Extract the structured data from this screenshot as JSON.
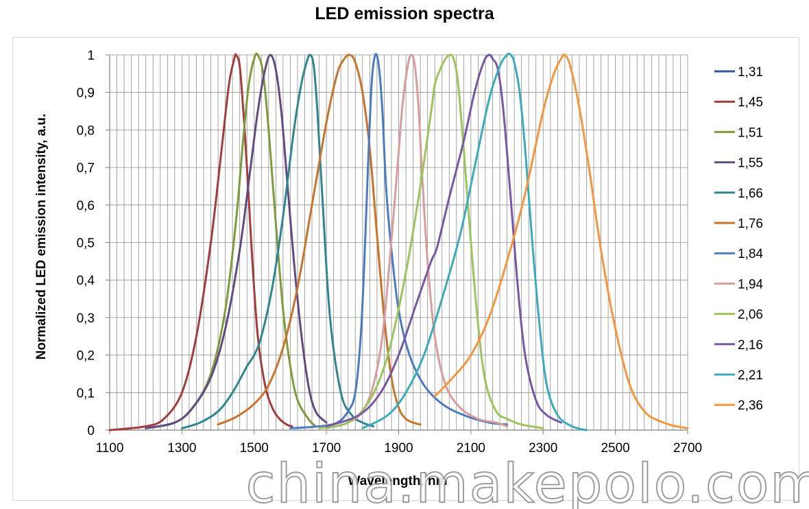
{
  "chart_data": {
    "type": "line",
    "title": "LED emission spectra",
    "xlabel": "Wavelength, nm",
    "ylabel": "Normalized LED emission intensity, a.u.",
    "xlim": [
      1100,
      2700
    ],
    "ylim": [
      0,
      1
    ],
    "x_ticks": [
      "1100",
      "1300",
      "1500",
      "1700",
      "1900",
      "2100",
      "2300",
      "2500",
      "2700"
    ],
    "y_ticks": [
      "0",
      "0,1",
      "0,2",
      "0,3",
      "0,4",
      "0,5",
      "0,6",
      "0,7",
      "0,8",
      "0,9",
      "1"
    ],
    "grid": "vertical and horizontal",
    "legend_position": "right",
    "series": [
      {
        "name": "1,31",
        "color": "#2f5597",
        "x": [],
        "y": []
      },
      {
        "name": "1,45",
        "color": "#a33b3b",
        "x": [
          1100,
          1200,
          1250,
          1300,
          1340,
          1380,
          1410,
          1430,
          1445,
          1450,
          1460,
          1470,
          1480,
          1495,
          1510,
          1530,
          1550,
          1570,
          1590,
          1605
        ],
        "y": [
          0,
          0.01,
          0.03,
          0.1,
          0.25,
          0.5,
          0.75,
          0.92,
          0.99,
          1.0,
          0.97,
          0.85,
          0.7,
          0.45,
          0.25,
          0.12,
          0.06,
          0.03,
          0.015,
          0.01
        ]
      },
      {
        "name": "1,51",
        "color": "#7f9a3a",
        "x": [
          1200,
          1280,
          1330,
          1380,
          1420,
          1450,
          1470,
          1485,
          1500,
          1510,
          1525,
          1540,
          1560,
          1580,
          1600,
          1620,
          1650,
          1670
        ],
        "y": [
          0.005,
          0.02,
          0.06,
          0.15,
          0.32,
          0.56,
          0.78,
          0.92,
          0.99,
          1.0,
          0.95,
          0.8,
          0.55,
          0.32,
          0.17,
          0.08,
          0.03,
          0.01
        ]
      },
      {
        "name": "1,55",
        "color": "#5f4a84",
        "x": [
          1200,
          1280,
          1330,
          1380,
          1420,
          1460,
          1490,
          1510,
          1530,
          1545,
          1560,
          1575,
          1590,
          1610,
          1630,
          1650,
          1670,
          1700
        ],
        "y": [
          0.005,
          0.02,
          0.06,
          0.14,
          0.27,
          0.48,
          0.7,
          0.85,
          0.96,
          1.0,
          0.96,
          0.85,
          0.68,
          0.45,
          0.26,
          0.12,
          0.05,
          0.02
        ]
      },
      {
        "name": "1,66",
        "color": "#2e8591",
        "x": [
          1300,
          1350,
          1400,
          1440,
          1480,
          1500,
          1520,
          1550,
          1580,
          1610,
          1630,
          1645,
          1655,
          1665,
          1675,
          1690,
          1710,
          1740,
          1770,
          1800,
          1830
        ],
        "y": [
          0.005,
          0.02,
          0.05,
          0.1,
          0.17,
          0.2,
          0.25,
          0.38,
          0.57,
          0.8,
          0.92,
          0.98,
          1.0,
          0.97,
          0.85,
          0.6,
          0.3,
          0.1,
          0.04,
          0.02,
          0.01
        ]
      },
      {
        "name": "1,76",
        "color": "#c8722c",
        "x": [
          1400,
          1450,
          1500,
          1540,
          1580,
          1620,
          1660,
          1700,
          1730,
          1750,
          1765,
          1780,
          1800,
          1820,
          1840,
          1860,
          1880,
          1900,
          1920,
          1940,
          1960
        ],
        "y": [
          0.015,
          0.035,
          0.07,
          0.12,
          0.22,
          0.38,
          0.6,
          0.82,
          0.95,
          0.99,
          1.0,
          0.98,
          0.9,
          0.75,
          0.52,
          0.3,
          0.14,
          0.06,
          0.03,
          0.02,
          0.015
        ]
      },
      {
        "name": "1,84",
        "color": "#4a7abf",
        "x": [
          1600,
          1680,
          1730,
          1760,
          1780,
          1795,
          1805,
          1815,
          1825,
          1835,
          1845,
          1855,
          1865,
          1880,
          1900,
          1930,
          1970,
          2020,
          2080,
          2150,
          2200
        ],
        "y": [
          0.005,
          0.01,
          0.02,
          0.05,
          0.1,
          0.25,
          0.45,
          0.7,
          0.92,
          1.0,
          0.97,
          0.85,
          0.65,
          0.48,
          0.32,
          0.2,
          0.12,
          0.07,
          0.04,
          0.02,
          0.015
        ]
      },
      {
        "name": "1,94",
        "color": "#d89c9c",
        "x": [
          1700,
          1760,
          1800,
          1830,
          1855,
          1875,
          1895,
          1910,
          1925,
          1935,
          1945,
          1955,
          1965,
          1980,
          2000,
          2030,
          2070,
          2120,
          2170,
          2200
        ],
        "y": [
          0.005,
          0.02,
          0.05,
          0.12,
          0.25,
          0.45,
          0.68,
          0.86,
          0.97,
          1.0,
          0.97,
          0.86,
          0.68,
          0.45,
          0.25,
          0.12,
          0.06,
          0.03,
          0.02,
          0.01
        ]
      },
      {
        "name": "2,06",
        "color": "#9bc45a",
        "x": [
          1680,
          1760,
          1820,
          1870,
          1920,
          1960,
          1990,
          2000,
          2010,
          2030,
          2045,
          2055,
          2065,
          2080,
          2100,
          2120,
          2140,
          2170,
          2200,
          2240,
          2300
        ],
        "y": [
          0.005,
          0.02,
          0.08,
          0.2,
          0.42,
          0.65,
          0.85,
          0.92,
          0.95,
          0.99,
          1.0,
          0.98,
          0.92,
          0.75,
          0.5,
          0.28,
          0.13,
          0.05,
          0.03,
          0.015,
          0.005
        ]
      },
      {
        "name": "2,16",
        "color": "#7756a6",
        "x": [
          1700,
          1790,
          1850,
          1900,
          1950,
          1990,
          2000,
          2010,
          2040,
          2080,
          2110,
          2135,
          2150,
          2160,
          2175,
          2190,
          2210,
          2230,
          2250,
          2280,
          2310,
          2350
        ],
        "y": [
          0.01,
          0.04,
          0.1,
          0.2,
          0.34,
          0.45,
          0.47,
          0.5,
          0.62,
          0.77,
          0.9,
          0.98,
          1.0,
          0.99,
          0.96,
          0.85,
          0.62,
          0.38,
          0.2,
          0.08,
          0.04,
          0.02
        ]
      },
      {
        "name": "2,21",
        "color": "#3caabd",
        "x": [
          1800,
          1870,
          1920,
          1970,
          2020,
          2070,
          2110,
          2150,
          2180,
          2200,
          2210,
          2220,
          2235,
          2250,
          2270,
          2290,
          2310,
          2340,
          2380,
          2420
        ],
        "y": [
          0.005,
          0.04,
          0.1,
          0.2,
          0.35,
          0.52,
          0.7,
          0.88,
          0.97,
          1.0,
          1.0,
          0.98,
          0.9,
          0.75,
          0.5,
          0.28,
          0.12,
          0.04,
          0.01,
          0.0
        ]
      },
      {
        "name": "2,36",
        "color": "#f5953e",
        "x": [
          2000,
          2050,
          2100,
          2150,
          2200,
          2250,
          2300,
          2330,
          2350,
          2360,
          2375,
          2400,
          2430,
          2460,
          2500,
          2540,
          2580,
          2620,
          2660,
          2700
        ],
        "y": [
          0.09,
          0.14,
          0.2,
          0.3,
          0.45,
          0.63,
          0.85,
          0.95,
          0.99,
          1.0,
          0.97,
          0.86,
          0.68,
          0.48,
          0.27,
          0.12,
          0.05,
          0.025,
          0.012,
          0.005
        ]
      }
    ]
  },
  "watermark": "china.makepolo.com"
}
